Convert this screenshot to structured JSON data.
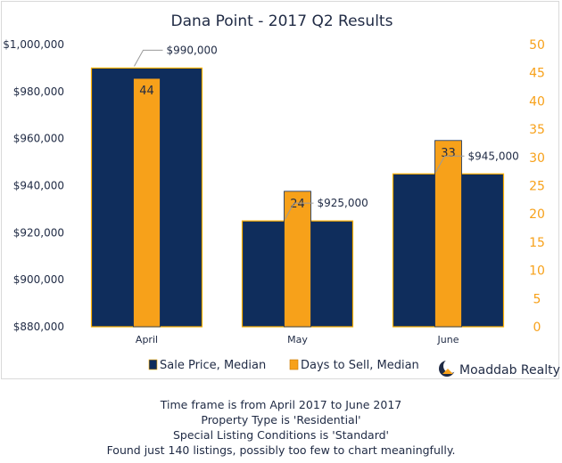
{
  "chart_data": {
    "type": "bar",
    "title": "Dana Point - 2017 Q2 Results",
    "categories": [
      "April",
      "May",
      "June"
    ],
    "series": [
      {
        "name": "Sale Price, Median",
        "axis": "left",
        "values": [
          990000,
          925000,
          945000
        ],
        "labels": [
          "$990,000",
          "$925,000",
          "$945,000"
        ],
        "color": "#0f2d5c"
      },
      {
        "name": "Days to Sell, Median",
        "axis": "right",
        "values": [
          44,
          24,
          33
        ],
        "labels": [
          "44",
          "24",
          "33"
        ],
        "color": "#f7a11a"
      }
    ],
    "y_left": {
      "min": 880000,
      "max": 1000000,
      "step": 20000,
      "tick_labels": [
        "$880,000",
        "$900,000",
        "$920,000",
        "$940,000",
        "$960,000",
        "$980,000",
        "$1,000,000"
      ]
    },
    "y_right": {
      "min": 0,
      "max": 50,
      "step": 5,
      "tick_labels": [
        "0",
        "5",
        "10",
        "15",
        "20",
        "25",
        "30",
        "35",
        "40",
        "45",
        "50"
      ],
      "color": "#f7a11a"
    },
    "grid": false,
    "legend": "bottom"
  },
  "branding": {
    "name": "Moaddab Realty"
  },
  "notes": [
    "Time frame is from April 2017 to June 2017",
    "Property Type is 'Residential'",
    "Special Listing Conditions is 'Standard'",
    "Found just 140 listings, possibly too few to chart meaningfully."
  ]
}
